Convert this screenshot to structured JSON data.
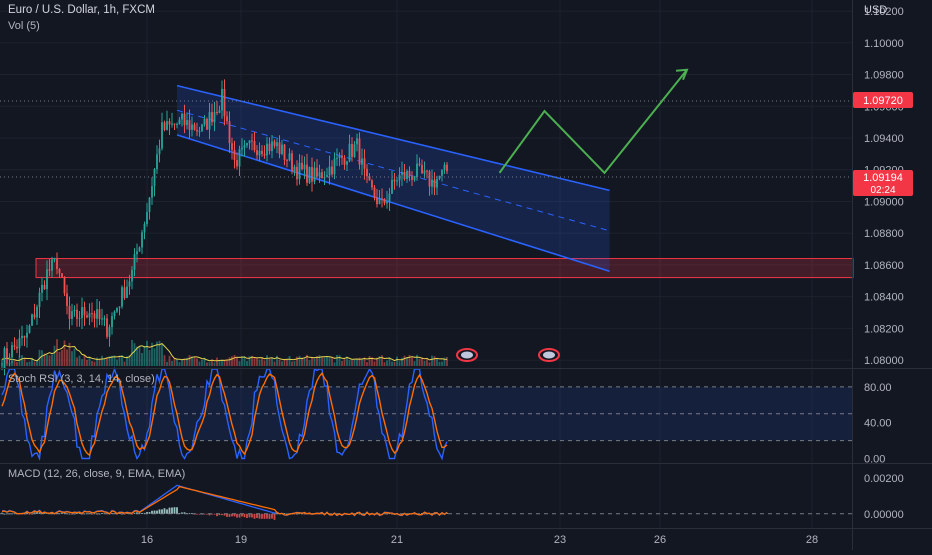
{
  "header": {
    "title": "Euro / U.S. Dollar, 1h, FXCM",
    "volume_label": "Vol (5)"
  },
  "currency": "USD",
  "colors": {
    "background": "#131722",
    "up": "#26a69a",
    "down": "#ef5350",
    "channel": "#2962ff",
    "projection": "#4caf50",
    "zone": "#f23645",
    "vol_ma": "#e8d34a",
    "stoch_k": "#2962ff",
    "stoch_d": "#ff6d00",
    "macd_line": "#2962ff",
    "signal_line": "#ff6d00"
  },
  "chart_data": [
    {
      "type": "candlestick",
      "symbol": "EUR/USD",
      "interval": "1h",
      "ylim": [
        1.0795,
        1.1027
      ],
      "y_ticks": [
        "1.10200",
        "1.10000",
        "1.09800",
        "1.09600",
        "1.09400",
        "1.09200",
        "1.09000",
        "1.08800",
        "1.08600",
        "1.08400",
        "1.08200",
        "1.08000"
      ],
      "x_ticks": [
        "16",
        "19",
        "21",
        "23",
        "26",
        "28"
      ],
      "last_price": "1.09194",
      "countdown": "02:24",
      "marked_price": "1.09720",
      "series_approx": [
        {
          "bar": 0,
          "close": 1.0801
        },
        {
          "bar": 10,
          "close": 1.0815
        },
        {
          "bar": 18,
          "close": 1.0855
        },
        {
          "bar": 22,
          "close": 1.0862
        },
        {
          "bar": 27,
          "close": 1.0825
        },
        {
          "bar": 35,
          "close": 1.0832
        },
        {
          "bar": 42,
          "close": 1.082
        },
        {
          "bar": 52,
          "close": 1.0855
        },
        {
          "bar": 58,
          "close": 1.0895
        },
        {
          "bar": 64,
          "close": 1.0945
        },
        {
          "bar": 72,
          "close": 1.095
        },
        {
          "bar": 80,
          "close": 1.0945
        },
        {
          "bar": 88,
          "close": 1.0965
        },
        {
          "bar": 93,
          "close": 1.0925
        },
        {
          "bar": 100,
          "close": 1.0935
        },
        {
          "bar": 110,
          "close": 1.0935
        },
        {
          "bar": 118,
          "close": 1.092
        },
        {
          "bar": 126,
          "close": 1.0915
        },
        {
          "bar": 134,
          "close": 1.0925
        },
        {
          "bar": 142,
          "close": 1.0935
        },
        {
          "bar": 146,
          "close": 1.091
        },
        {
          "bar": 152,
          "close": 1.0897
        },
        {
          "bar": 158,
          "close": 1.0915
        },
        {
          "bar": 166,
          "close": 1.0918
        },
        {
          "bar": 172,
          "close": 1.0912
        },
        {
          "bar": 178,
          "close": 1.0919
        }
      ],
      "support_zone": [
        1.0852,
        1.0864
      ]
    },
    {
      "type": "line",
      "indicator": "Stoch RSI",
      "label": "Stoch RSI (3, 3, 14, 14, close)",
      "ylim": [
        -5,
        100
      ],
      "y_ticks": [
        "80.00",
        "40.00",
        "0.00"
      ]
    },
    {
      "type": "bar",
      "indicator": "MACD",
      "label": "MACD (12, 26, close, 9, EMA, EMA)",
      "ylim": [
        -0.0008,
        0.0028
      ],
      "y_ticks": [
        "0.00200",
        "0.00000"
      ]
    }
  ]
}
